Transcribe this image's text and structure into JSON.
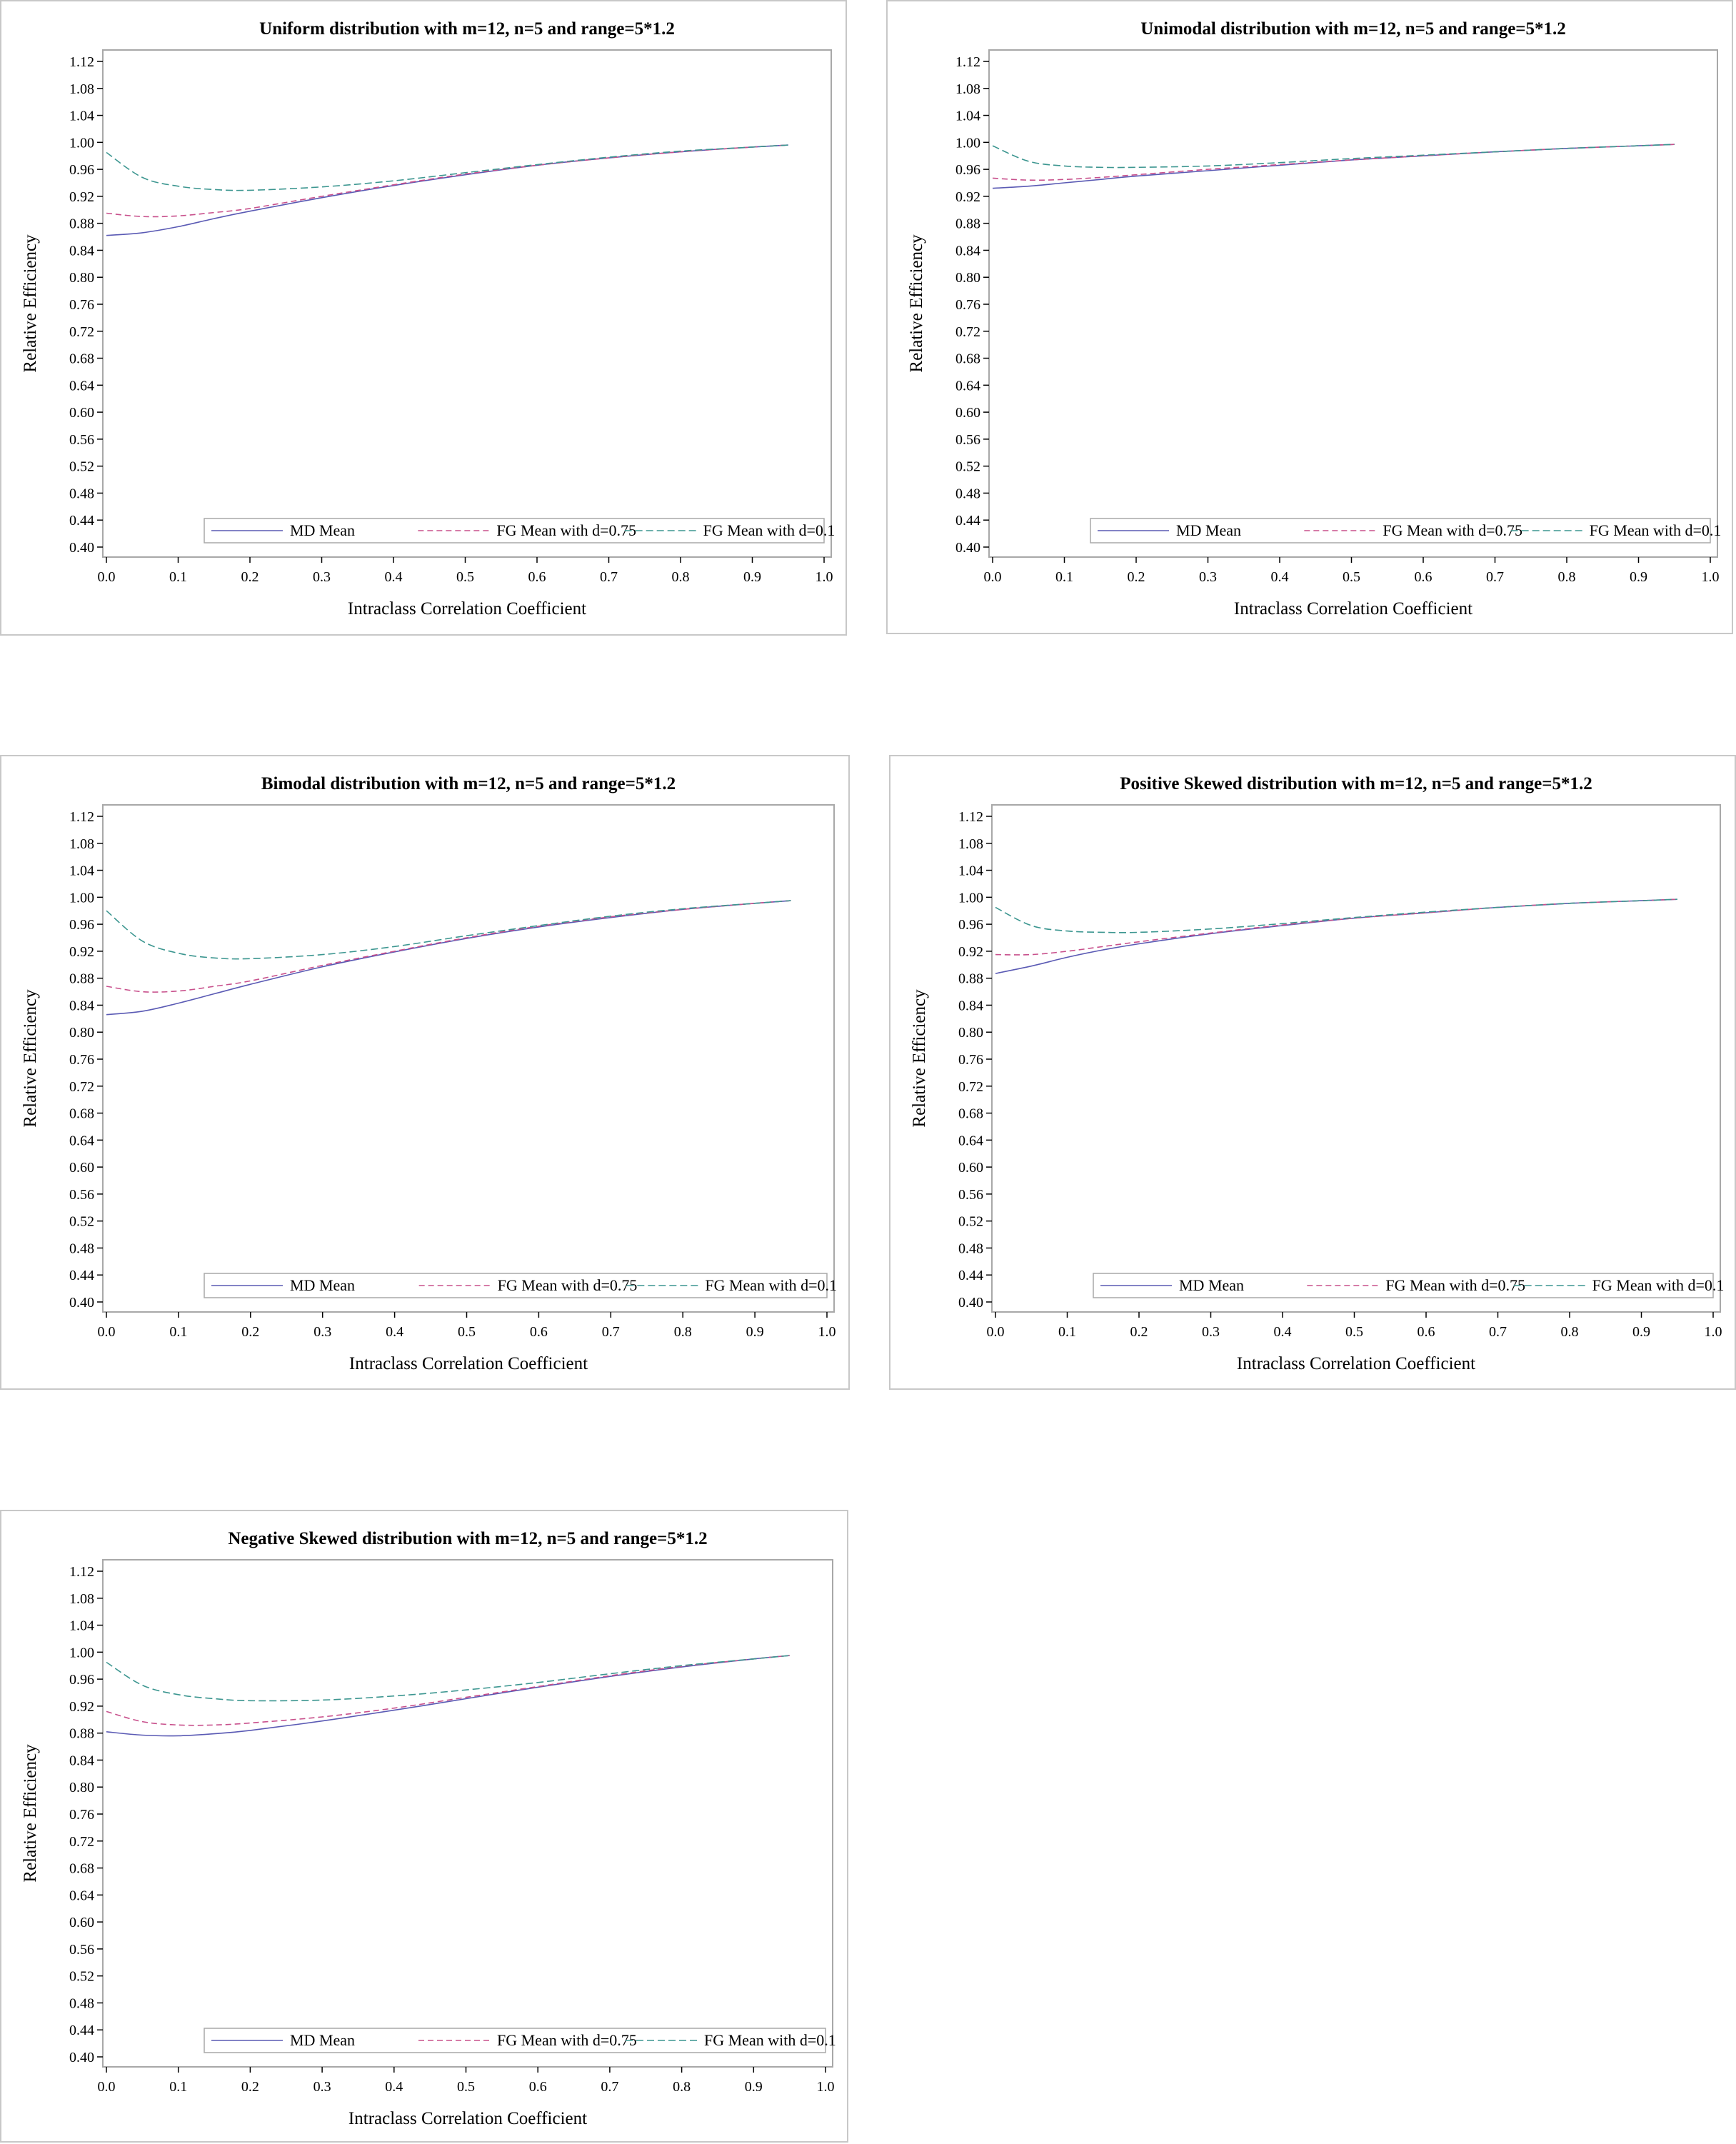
{
  "colors": {
    "md_mean": "#5a5ab4",
    "fg_075": "#c8508c",
    "fg_01": "#3c9690",
    "frame": "#a8a8a8",
    "panel_border": "#c8c8c8"
  },
  "legend_labels": [
    "MD Mean",
    "FG Mean with d=0.75",
    "FG Mean with d=0.1"
  ],
  "chart_data": [
    {
      "type": "line",
      "title": "Uniform distribution with m=12, n=5 and range=5*1.2",
      "xlabel": "Intraclass Correlation Coefficient",
      "ylabel": "Relative Efficiency",
      "xlim": [
        0.0,
        1.0
      ],
      "ylim": [
        0.4,
        1.12
      ],
      "xticks": [
        "0.0",
        "0.1",
        "0.2",
        "0.3",
        "0.4",
        "0.5",
        "0.6",
        "0.7",
        "0.8",
        "0.9",
        "1.0"
      ],
      "yticks": [
        "0.40",
        "0.44",
        "0.48",
        "0.52",
        "0.56",
        "0.60",
        "0.64",
        "0.68",
        "0.72",
        "0.76",
        "0.80",
        "0.84",
        "0.88",
        "0.92",
        "0.96",
        "1.00",
        "1.04",
        "1.08",
        "1.12"
      ],
      "x": [
        0.0,
        0.05,
        0.1,
        0.15,
        0.2,
        0.3,
        0.4,
        0.5,
        0.6,
        0.7,
        0.8,
        0.9,
        0.95
      ],
      "series": [
        {
          "name": "MD Mean",
          "values": [
            0.862,
            0.866,
            0.875,
            0.887,
            0.898,
            0.918,
            0.936,
            0.952,
            0.966,
            0.977,
            0.986,
            0.993,
            0.996
          ]
        },
        {
          "name": "FG Mean with d=0.75",
          "values": [
            0.895,
            0.89,
            0.891,
            0.896,
            0.902,
            0.92,
            0.937,
            0.953,
            0.966,
            0.977,
            0.986,
            0.993,
            0.996
          ]
        },
        {
          "name": "FG Mean with d=0.1",
          "values": [
            0.985,
            0.948,
            0.935,
            0.93,
            0.929,
            0.934,
            0.943,
            0.955,
            0.967,
            0.978,
            0.987,
            0.993,
            0.996
          ]
        }
      ],
      "legend": "bottom",
      "grid": false
    },
    {
      "type": "line",
      "title": "Unimodal distribution with m=12, n=5 and range=5*1.2",
      "xlabel": "Intraclass Correlation Coefficient",
      "ylabel": "Relative Efficiency",
      "xlim": [
        0.0,
        1.0
      ],
      "ylim": [
        0.4,
        1.12
      ],
      "xticks": [
        "0.0",
        "0.1",
        "0.2",
        "0.3",
        "0.4",
        "0.5",
        "0.6",
        "0.7",
        "0.8",
        "0.9",
        "1.0"
      ],
      "yticks": [
        "0.40",
        "0.44",
        "0.48",
        "0.52",
        "0.56",
        "0.60",
        "0.64",
        "0.68",
        "0.72",
        "0.76",
        "0.80",
        "0.84",
        "0.88",
        "0.92",
        "0.96",
        "1.00",
        "1.04",
        "1.08",
        "1.12"
      ],
      "x": [
        0.0,
        0.05,
        0.1,
        0.15,
        0.2,
        0.3,
        0.4,
        0.5,
        0.6,
        0.7,
        0.8,
        0.9,
        0.95
      ],
      "series": [
        {
          "name": "MD Mean",
          "values": [
            0.932,
            0.935,
            0.94,
            0.945,
            0.95,
            0.958,
            0.966,
            0.974,
            0.98,
            0.986,
            0.991,
            0.995,
            0.997
          ]
        },
        {
          "name": "FG Mean with d=0.75",
          "values": [
            0.947,
            0.944,
            0.945,
            0.948,
            0.952,
            0.96,
            0.967,
            0.974,
            0.98,
            0.986,
            0.991,
            0.995,
            0.997
          ]
        },
        {
          "name": "FG Mean with d=0.1",
          "values": [
            0.995,
            0.972,
            0.965,
            0.963,
            0.963,
            0.965,
            0.97,
            0.976,
            0.981,
            0.986,
            0.991,
            0.995,
            0.997
          ]
        }
      ],
      "legend": "bottom",
      "grid": false
    },
    {
      "type": "line",
      "title": "Bimodal distribution with m=12, n=5 and range=5*1.2",
      "xlabel": "Intraclass Correlation Coefficient",
      "ylabel": "Relative Efficiency",
      "xlim": [
        0.0,
        1.0
      ],
      "ylim": [
        0.4,
        1.12
      ],
      "xticks": [
        "0.0",
        "0.1",
        "0.2",
        "0.3",
        "0.4",
        "0.5",
        "0.6",
        "0.7",
        "0.8",
        "0.9",
        "1.0"
      ],
      "yticks": [
        "0.40",
        "0.44",
        "0.48",
        "0.52",
        "0.56",
        "0.60",
        "0.64",
        "0.68",
        "0.72",
        "0.76",
        "0.80",
        "0.84",
        "0.88",
        "0.92",
        "0.96",
        "1.00",
        "1.04",
        "1.08",
        "1.12"
      ],
      "x": [
        0.0,
        0.05,
        0.1,
        0.15,
        0.2,
        0.3,
        0.4,
        0.5,
        0.6,
        0.7,
        0.8,
        0.9,
        0.95
      ],
      "series": [
        {
          "name": "MD Mean",
          "values": [
            0.826,
            0.831,
            0.843,
            0.857,
            0.871,
            0.897,
            0.919,
            0.939,
            0.956,
            0.97,
            0.982,
            0.991,
            0.995
          ]
        },
        {
          "name": "FG Mean with d=0.75",
          "values": [
            0.868,
            0.86,
            0.861,
            0.868,
            0.876,
            0.899,
            0.92,
            0.94,
            0.957,
            0.971,
            0.982,
            0.991,
            0.995
          ]
        },
        {
          "name": "FG Mean with d=0.1",
          "values": [
            0.98,
            0.935,
            0.917,
            0.91,
            0.909,
            0.915,
            0.927,
            0.943,
            0.958,
            0.972,
            0.983,
            0.991,
            0.995
          ]
        }
      ],
      "legend": "bottom",
      "grid": false
    },
    {
      "type": "line",
      "title": "Positive Skewed distribution with m=12, n=5 and range=5*1.2",
      "xlabel": "Intraclass Correlation Coefficient",
      "ylabel": "Relative Efficiency",
      "xlim": [
        0.0,
        1.0
      ],
      "ylim": [
        0.4,
        1.12
      ],
      "xticks": [
        "0.0",
        "0.1",
        "0.2",
        "0.3",
        "0.4",
        "0.5",
        "0.6",
        "0.7",
        "0.8",
        "0.9",
        "1.0"
      ],
      "yticks": [
        "0.40",
        "0.44",
        "0.48",
        "0.52",
        "0.56",
        "0.60",
        "0.64",
        "0.68",
        "0.72",
        "0.76",
        "0.80",
        "0.84",
        "0.88",
        "0.92",
        "0.96",
        "1.00",
        "1.04",
        "1.08",
        "1.12"
      ],
      "x": [
        0.0,
        0.05,
        0.1,
        0.15,
        0.2,
        0.3,
        0.4,
        0.5,
        0.6,
        0.7,
        0.8,
        0.9,
        0.95
      ],
      "series": [
        {
          "name": "MD Mean",
          "values": [
            0.887,
            0.898,
            0.911,
            0.922,
            0.931,
            0.946,
            0.958,
            0.969,
            0.977,
            0.985,
            0.991,
            0.995,
            0.997
          ]
        },
        {
          "name": "FG Mean with d=0.75",
          "values": [
            0.915,
            0.915,
            0.92,
            0.927,
            0.934,
            0.947,
            0.959,
            0.969,
            0.977,
            0.985,
            0.991,
            0.995,
            0.997
          ]
        },
        {
          "name": "FG Mean with d=0.1",
          "values": [
            0.985,
            0.958,
            0.95,
            0.948,
            0.948,
            0.953,
            0.961,
            0.97,
            0.978,
            0.985,
            0.991,
            0.995,
            0.997
          ]
        }
      ],
      "legend": "bottom",
      "grid": false
    },
    {
      "type": "line",
      "title": "Negative Skewed distribution with m=12, n=5 and range=5*1.2",
      "xlabel": "Intraclass Correlation Coefficient",
      "ylabel": "Relative Efficiency",
      "xlim": [
        0.0,
        1.0
      ],
      "ylim": [
        0.4,
        1.12
      ],
      "xticks": [
        "0.0",
        "0.1",
        "0.2",
        "0.3",
        "0.4",
        "0.5",
        "0.6",
        "0.7",
        "0.8",
        "0.9",
        "1.0"
      ],
      "yticks": [
        "0.40",
        "0.44",
        "0.48",
        "0.52",
        "0.56",
        "0.60",
        "0.64",
        "0.68",
        "0.72",
        "0.76",
        "0.80",
        "0.84",
        "0.88",
        "0.92",
        "0.96",
        "1.00",
        "1.04",
        "1.08",
        "1.12"
      ],
      "x": [
        0.0,
        0.05,
        0.1,
        0.15,
        0.2,
        0.3,
        0.4,
        0.5,
        0.6,
        0.7,
        0.8,
        0.9,
        0.95
      ],
      "series": [
        {
          "name": "MD Mean",
          "values": [
            0.882,
            0.877,
            0.876,
            0.879,
            0.884,
            0.898,
            0.914,
            0.931,
            0.948,
            0.964,
            0.978,
            0.99,
            0.995
          ]
        },
        {
          "name": "FG Mean with d=0.75",
          "values": [
            0.912,
            0.897,
            0.892,
            0.892,
            0.895,
            0.904,
            0.917,
            0.933,
            0.949,
            0.965,
            0.979,
            0.99,
            0.995
          ]
        },
        {
          "name": "FG Mean with d=0.1",
          "values": [
            0.985,
            0.951,
            0.937,
            0.931,
            0.928,
            0.929,
            0.935,
            0.944,
            0.955,
            0.968,
            0.98,
            0.99,
            0.995
          ]
        }
      ],
      "legend": "bottom",
      "grid": false
    }
  ]
}
